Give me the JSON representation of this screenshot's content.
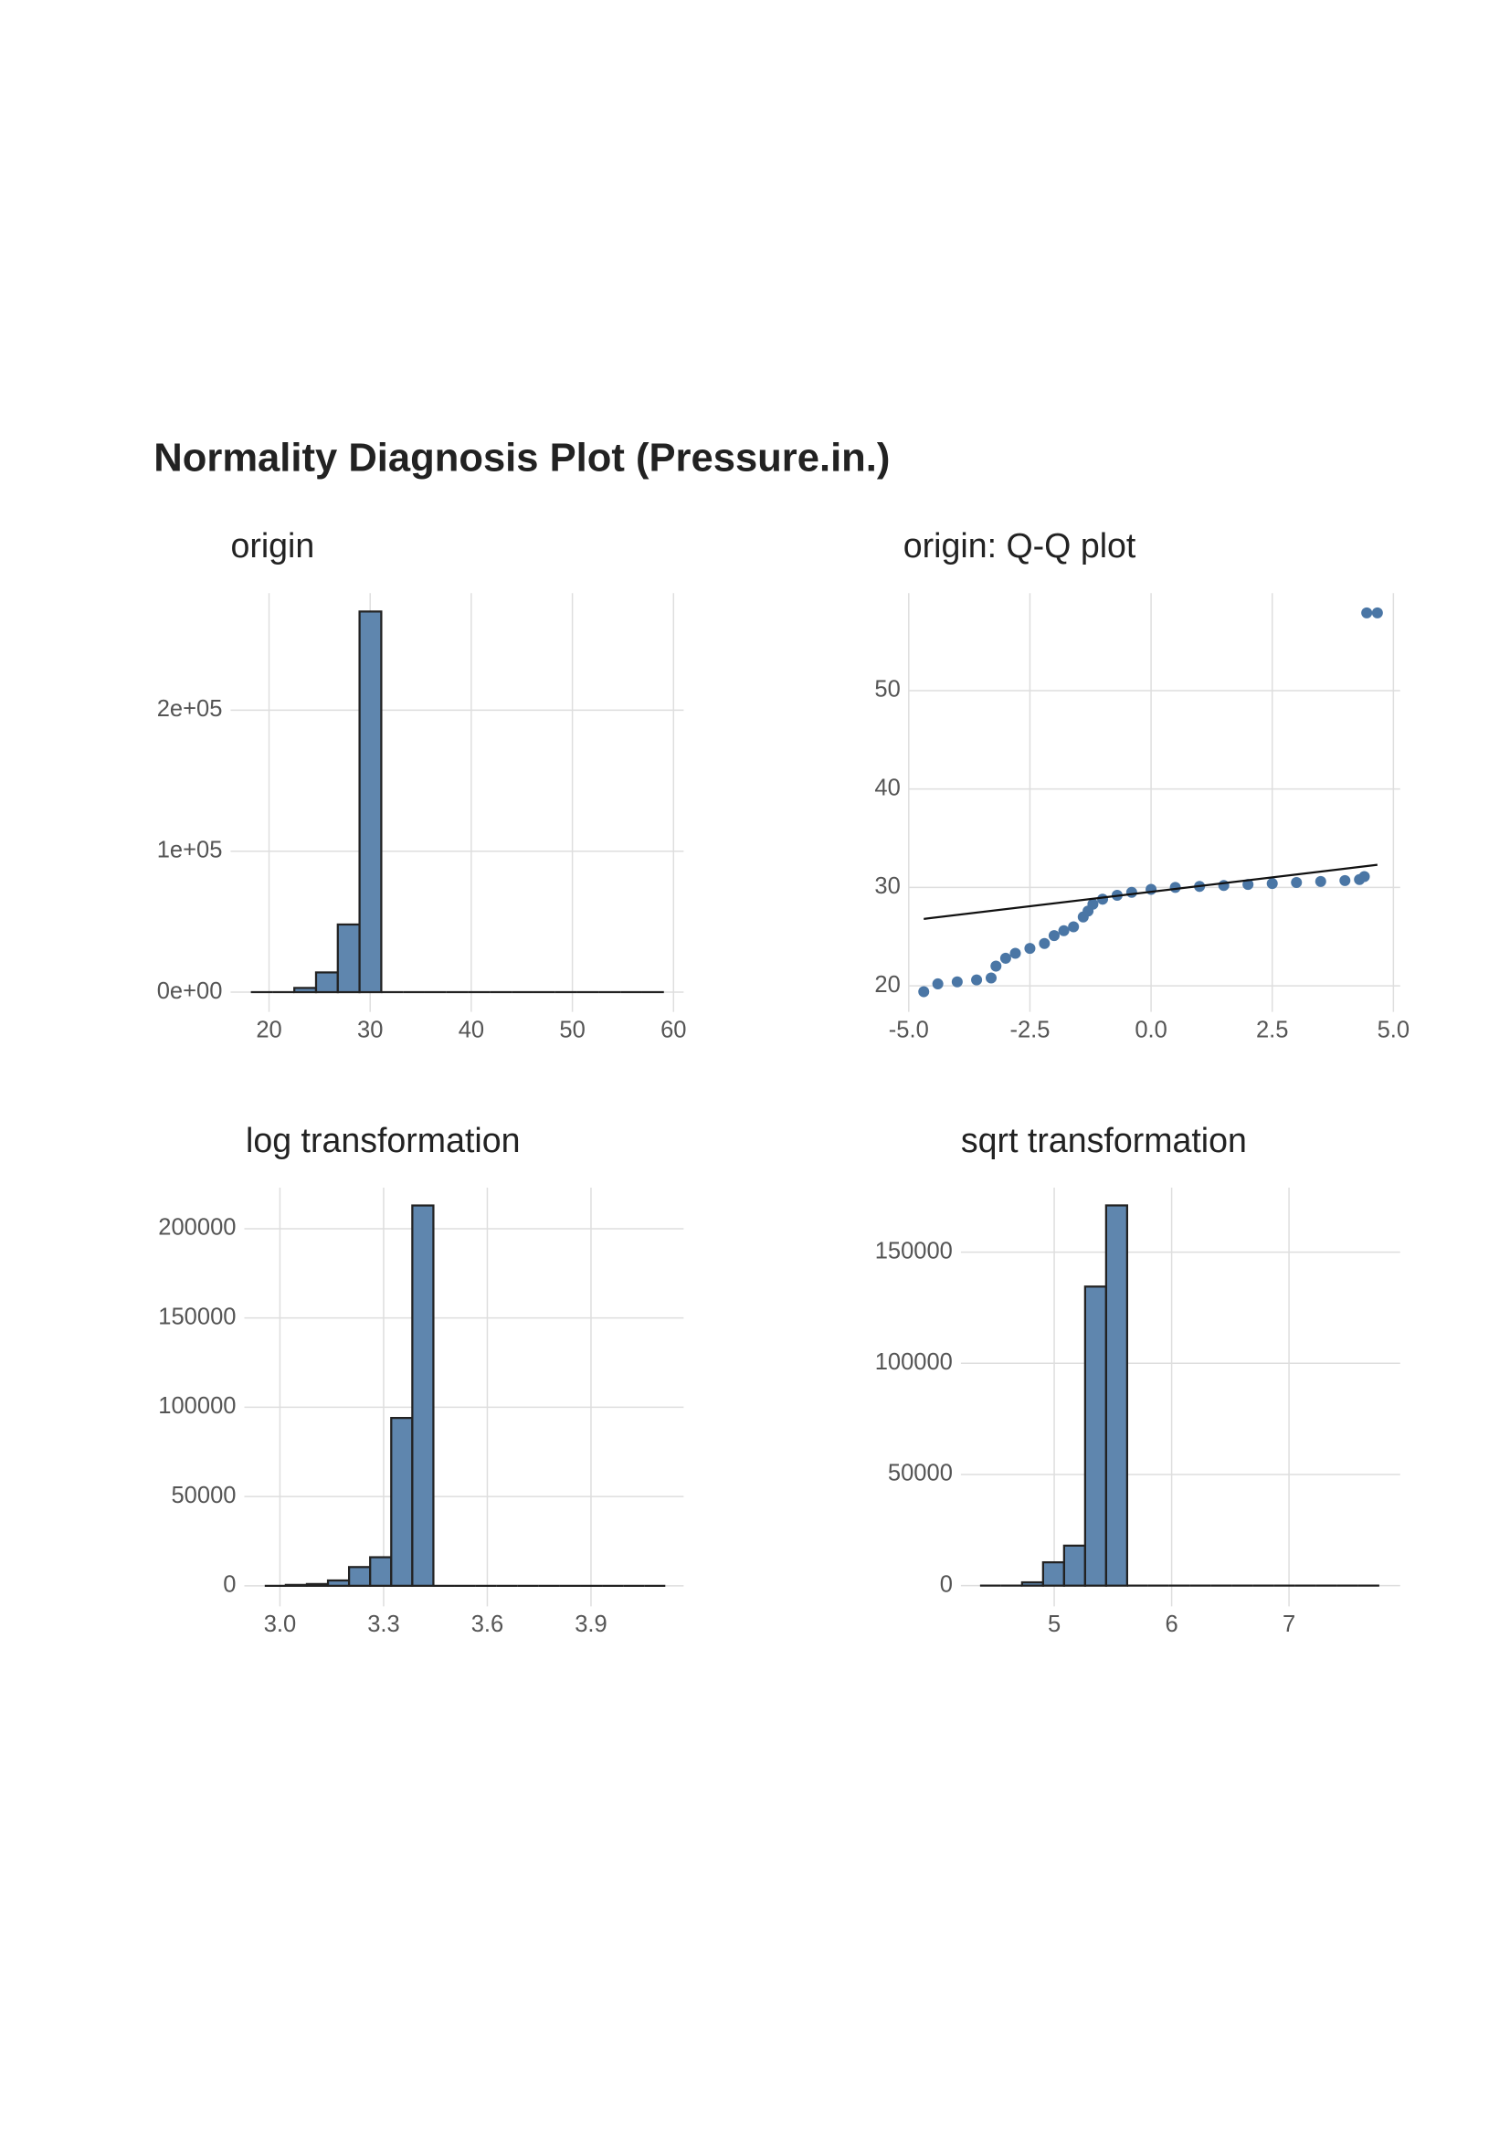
{
  "title": "Normality Diagnosis Plot (Pressure.in.)",
  "chart_data": [
    {
      "type": "histogram",
      "subtitle": "origin",
      "bins": [
        18.2,
        20.35,
        22.5,
        24.65,
        26.8,
        28.95,
        31.1,
        33.25,
        35.4,
        37.55,
        39.7,
        41.85,
        44,
        46.15,
        48.3,
        50.45,
        52.6,
        54.75,
        56.9,
        59.05
      ],
      "values": [
        0,
        100,
        3000,
        14000,
        48000,
        270000,
        0,
        0,
        0,
        0,
        0,
        0,
        0,
        0,
        0,
        0,
        0,
        0,
        0
      ],
      "color": "#5f86ae",
      "xlim": [
        16.2,
        61.0
      ],
      "ylim": [
        -14000,
        283000
      ],
      "xticks": [
        20,
        30,
        40,
        50,
        60
      ],
      "yticks": [
        {
          "value": 0,
          "label": "0e+00"
        },
        {
          "value": 100000,
          "label": "1e+05"
        },
        {
          "value": 200000,
          "label": "2e+05"
        }
      ],
      "grid": true
    },
    {
      "type": "scatter",
      "subtitle": "origin: Q-Q plot",
      "x": [
        -4.69,
        -4.4,
        -4.0,
        -3.6,
        -3.3,
        -3.2,
        -3.0,
        -2.8,
        -2.5,
        -2.2,
        -2.0,
        -1.8,
        -1.6,
        -1.4,
        -1.3,
        -1.2,
        -1.0,
        -0.7,
        -0.4,
        0,
        0.5,
        1.0,
        1.5,
        2.0,
        2.5,
        3.0,
        3.5,
        4.0,
        4.3,
        4.4,
        4.45,
        4.67
      ],
      "values": [
        19.4,
        20.2,
        20.4,
        20.6,
        20.8,
        22,
        22.8,
        23.3,
        23.8,
        24.3,
        25.1,
        25.6,
        26.0,
        27,
        27.6,
        28.3,
        28.8,
        29.2,
        29.5,
        29.8,
        30.0,
        30.1,
        30.2,
        30.3,
        30.4,
        30.5,
        30.6,
        30.7,
        30.8,
        31.1,
        57.9,
        57.9
      ],
      "color": "#4a76a5",
      "reference_line": {
        "x": [
          -4.69,
          4.67
        ],
        "y": [
          26.8,
          32.3
        ]
      },
      "xlim": [
        -5.0,
        5.14
      ],
      "ylim": [
        17.35,
        59.9
      ],
      "xticks": [
        {
          "value": -5,
          "label": "-5.0"
        },
        -2.5,
        {
          "value": 0,
          "label": "0.0"
        },
        2.5,
        {
          "value": 5,
          "label": "5.0"
        }
      ],
      "yticks": [
        20,
        30,
        40,
        50
      ],
      "grid": true
    },
    {
      "type": "histogram",
      "subtitle": "log transformation",
      "bins": [
        2.956,
        3.017,
        3.078,
        3.139,
        3.2,
        3.261,
        3.322,
        3.383,
        3.444,
        3.505,
        3.566,
        3.627,
        3.688,
        3.749,
        3.81,
        3.871,
        3.932,
        3.993,
        4.054,
        4.115
      ],
      "values": [
        200,
        500,
        1000,
        3000,
        10500,
        16000,
        94000,
        213000,
        0,
        0,
        0,
        0,
        0,
        0,
        0,
        0,
        0,
        0,
        0
      ],
      "color": "#5f86ae",
      "xlim": [
        2.897,
        4.168
      ],
      "ylim": [
        -11500,
        223000
      ],
      "xticks": [
        {
          "value": 3,
          "label": "3.0"
        },
        3.3,
        3.6,
        3.9
      ],
      "yticks": [
        0,
        50000,
        100000,
        150000,
        200000
      ],
      "grid": true
    },
    {
      "type": "histogram",
      "subtitle": "sqrt transformation",
      "bins": [
        4.368,
        4.547,
        4.726,
        4.905,
        5.084,
        5.263,
        5.442,
        5.621,
        5.8,
        5.979,
        6.158,
        6.337,
        6.516,
        6.695,
        6.874,
        7.053,
        7.232,
        7.411,
        7.59,
        7.769
      ],
      "values": [
        0,
        200,
        1500,
        10500,
        18000,
        134500,
        171000,
        0,
        0,
        0,
        0,
        0,
        0,
        0,
        0,
        0,
        0,
        0,
        0
      ],
      "color": "#5f86ae",
      "xlim": [
        4.205,
        7.947
      ],
      "ylim": [
        -9300,
        179000
      ],
      "xticks": [
        5,
        6,
        7
      ],
      "yticks": [
        0,
        50000,
        100000,
        150000
      ],
      "grid": true
    }
  ]
}
